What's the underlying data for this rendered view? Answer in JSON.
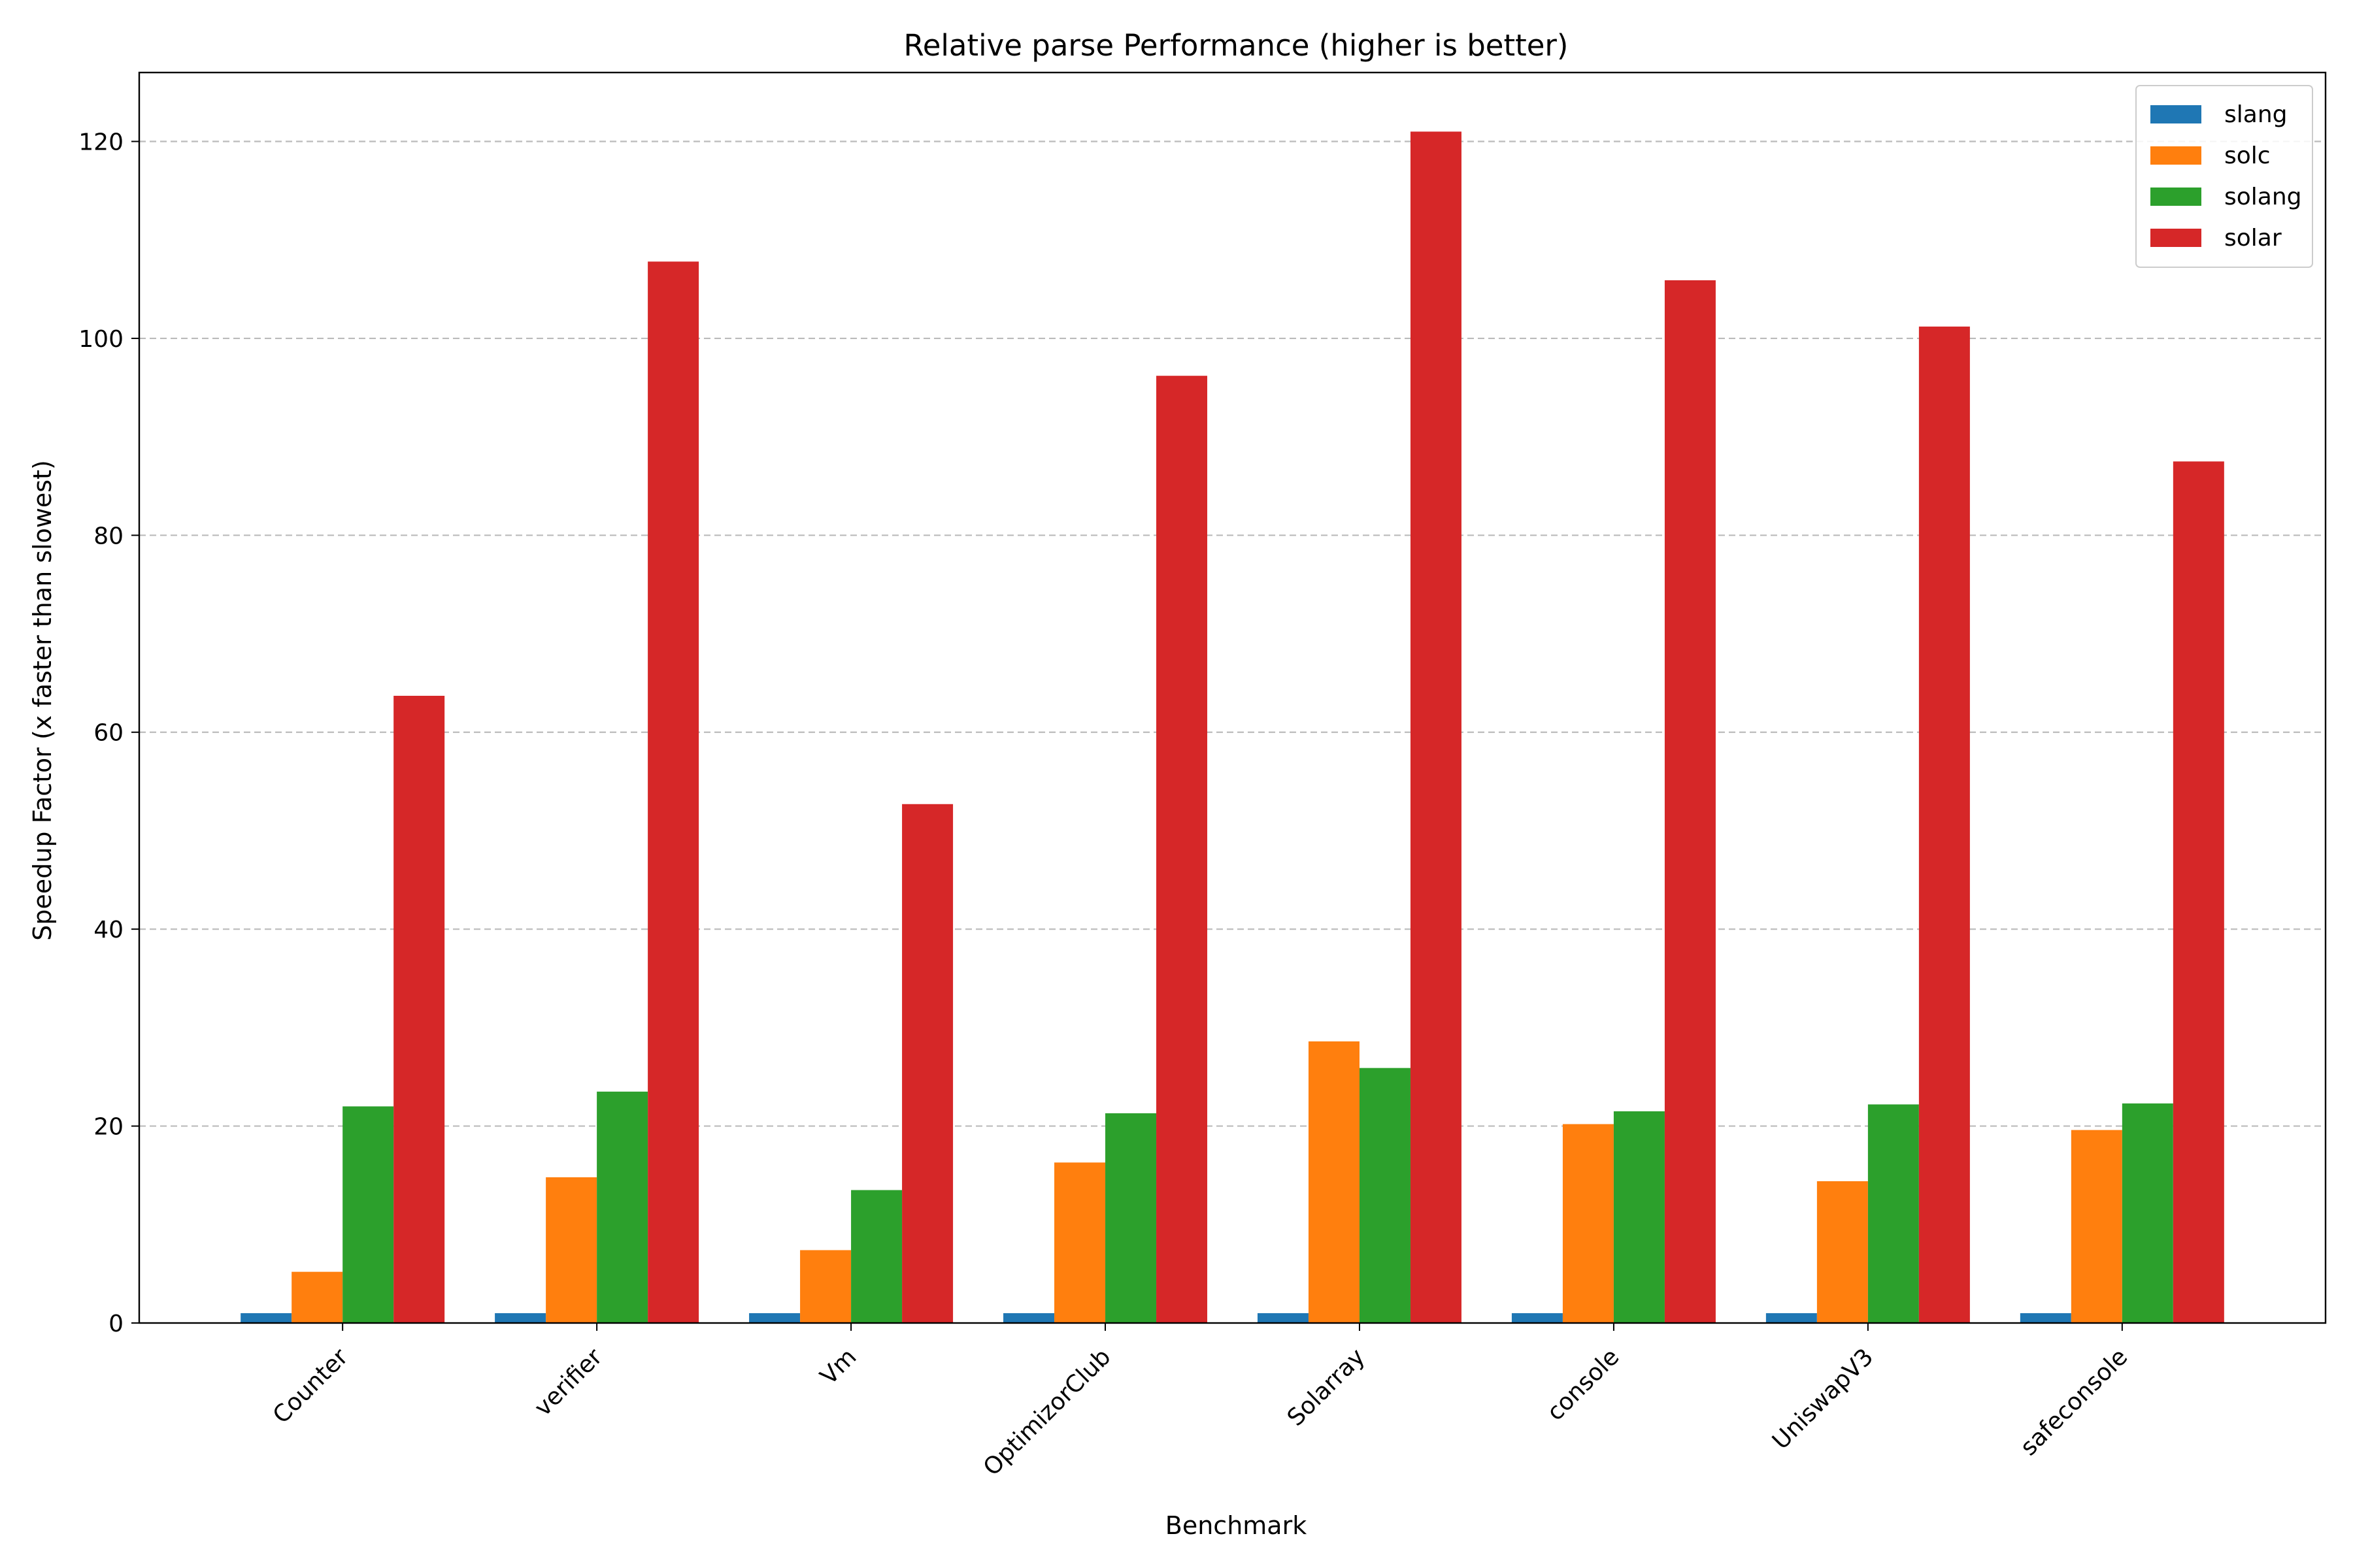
{
  "chart_data": {
    "type": "bar",
    "title": "Relative parse Performance (higher is better)",
    "xlabel": "Benchmark",
    "ylabel": "Speedup Factor (x faster than slowest)",
    "categories": [
      "Counter",
      "verifier",
      "Vm",
      "OptimizorClub",
      "Solarray",
      "console",
      "UniswapV3",
      "safeconsole"
    ],
    "ylim": [
      0,
      127
    ],
    "yticks": [
      0,
      20,
      40,
      60,
      80,
      100,
      120
    ],
    "grid": "horizontal dashed",
    "legend_position": "top-right",
    "series": [
      {
        "name": "slang",
        "color": "#1f77b4",
        "values": [
          1,
          1,
          1,
          1,
          1,
          1,
          1,
          1
        ]
      },
      {
        "name": "solc",
        "color": "#ff7f0e",
        "values": [
          5.2,
          14.8,
          7.4,
          16.3,
          28.6,
          20.2,
          14.4,
          19.6
        ]
      },
      {
        "name": "solang",
        "color": "#2ca02c",
        "values": [
          22.0,
          23.5,
          13.5,
          21.3,
          25.9,
          21.5,
          22.2,
          22.3
        ]
      },
      {
        "name": "solar",
        "color": "#d62728",
        "values": [
          63.7,
          107.8,
          52.7,
          96.2,
          121.0,
          105.9,
          101.2,
          87.5
        ]
      }
    ]
  }
}
